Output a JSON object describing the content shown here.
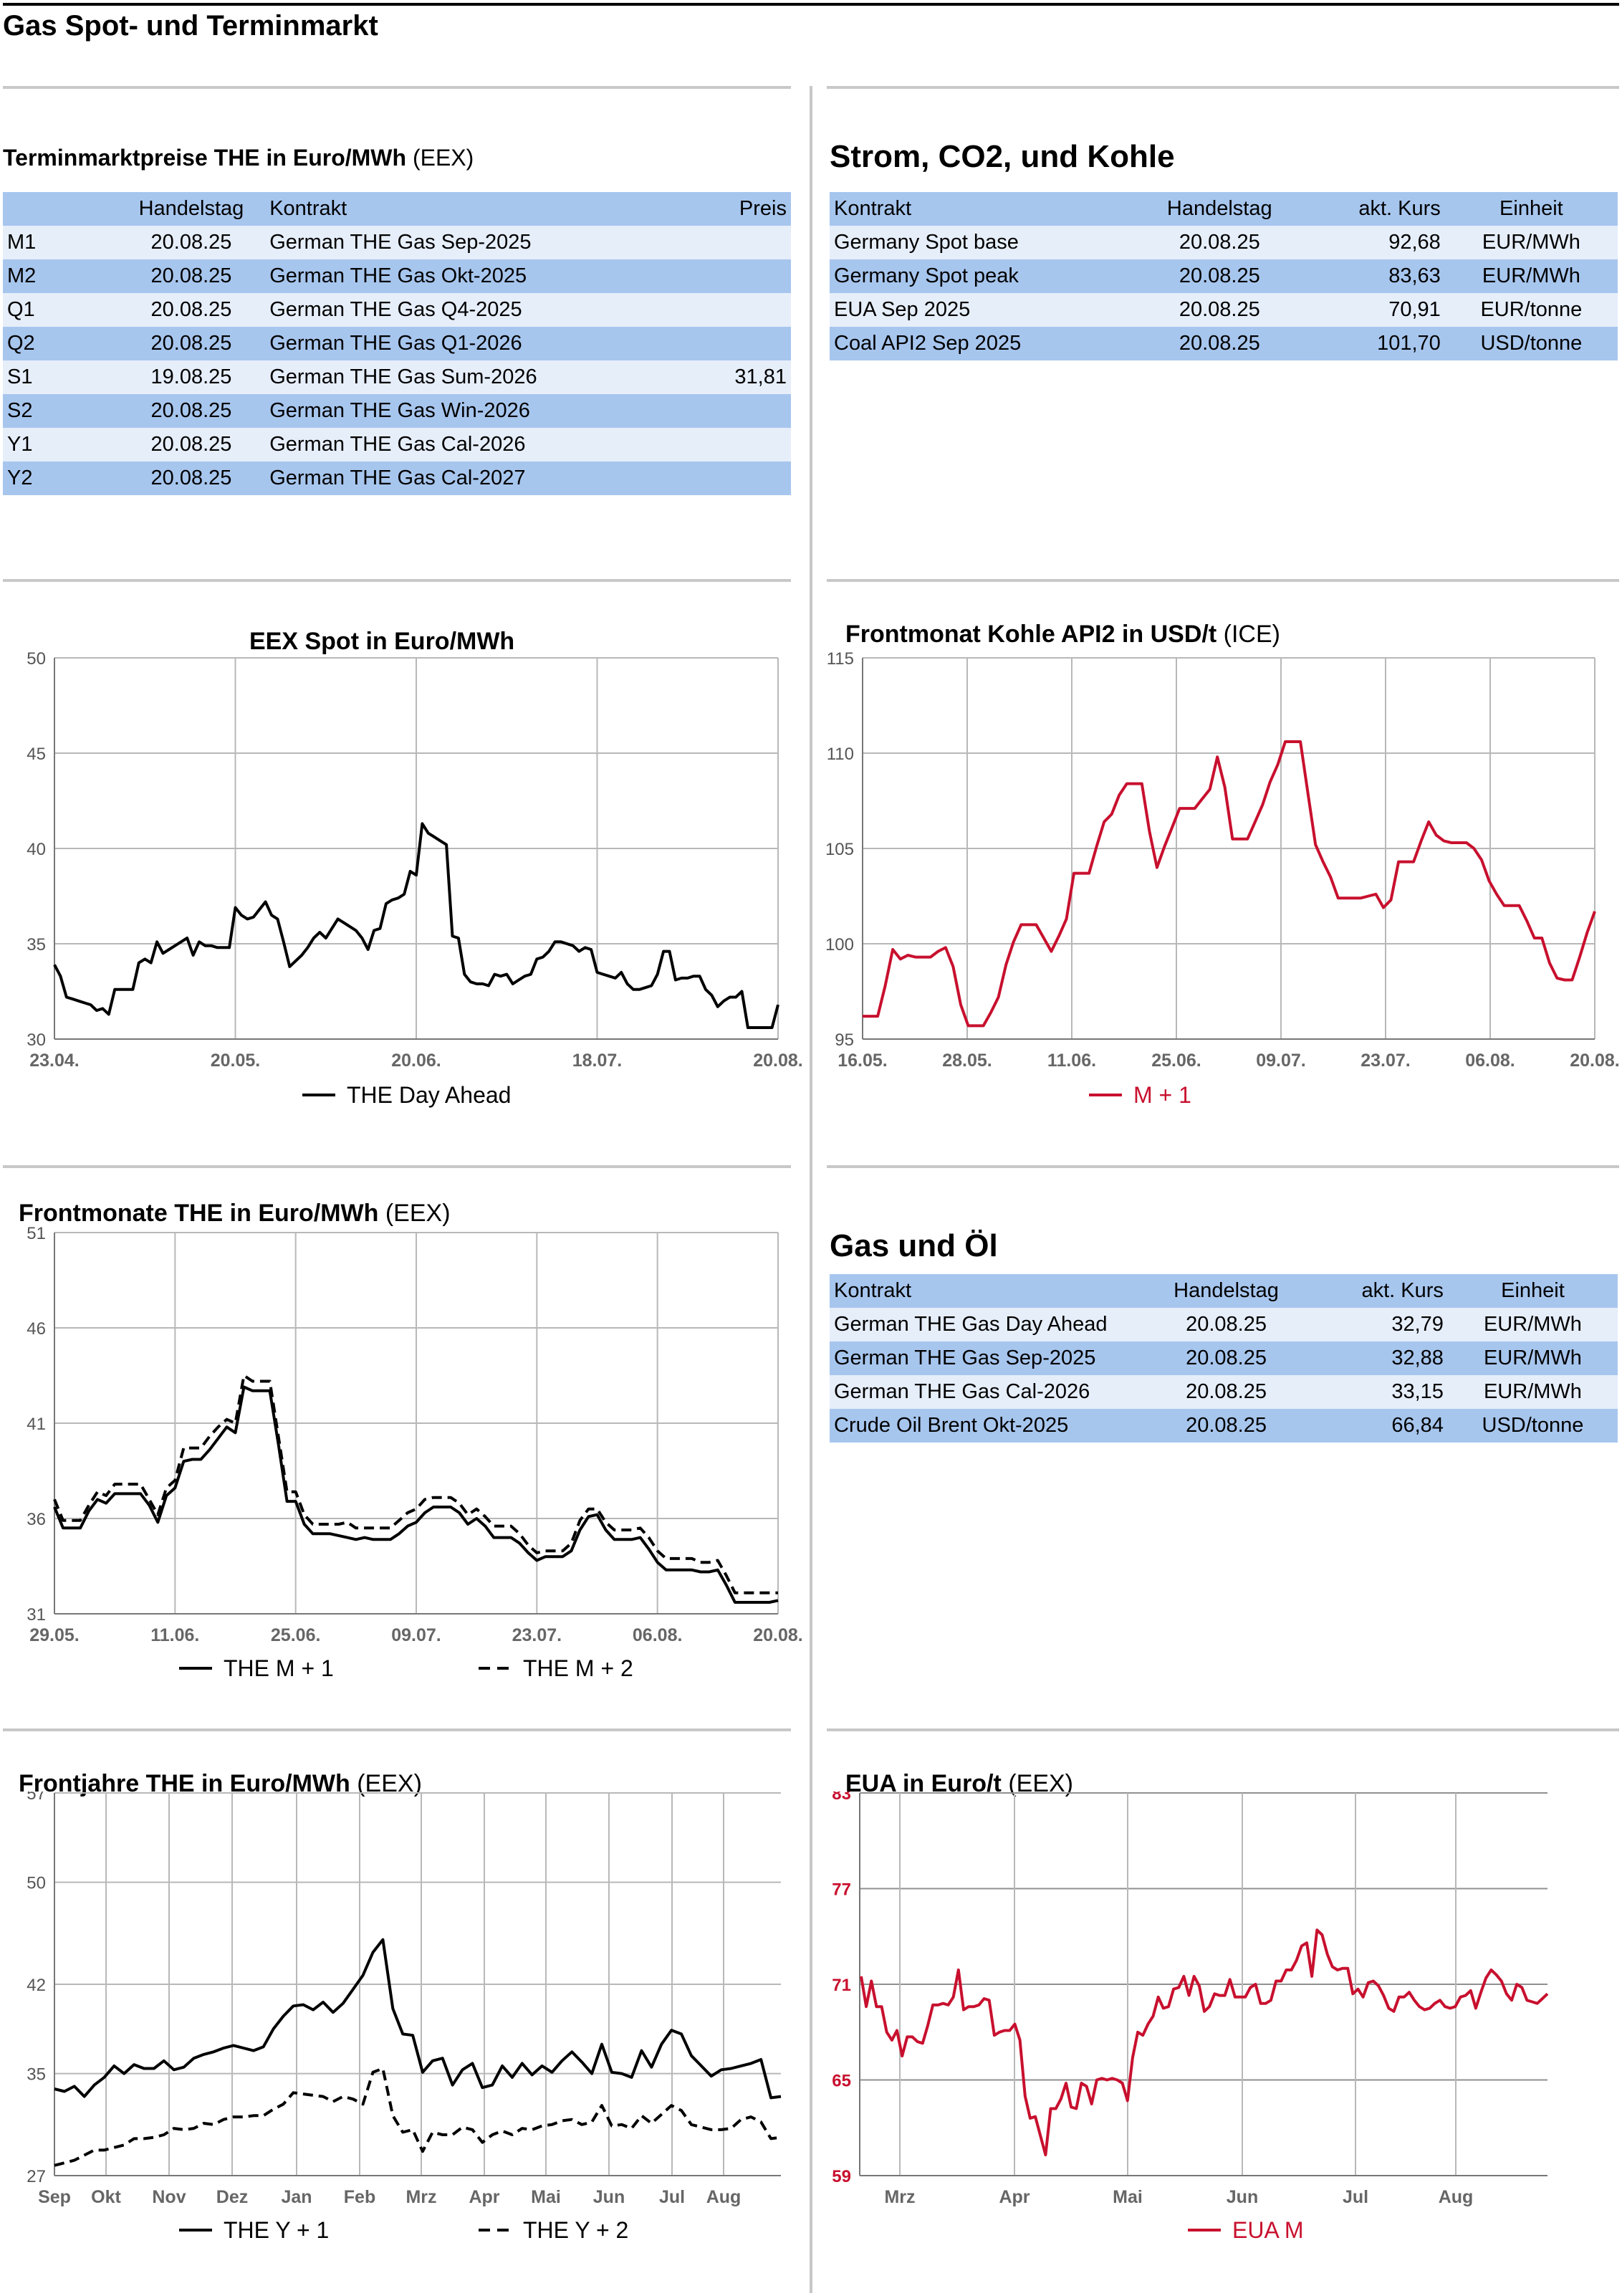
{
  "page_title": "Gas Spot- und Terminmarkt",
  "colors": {
    "header_row": "#a7c6ee",
    "alt_row": "#e6eefa",
    "red": "#c8102e",
    "black": "#000000",
    "grid": "#a0a0a0"
  },
  "terminmarkt": {
    "title": "Terminmarktpreise THE in Euro/MWh",
    "source": "(EEX)",
    "headers": [
      "",
      "Handelstag",
      "Kontrakt",
      "Preis"
    ],
    "rows": [
      [
        "M1",
        "20.08.25",
        "German THE Gas Sep-2025",
        ""
      ],
      [
        "M2",
        "20.08.25",
        "German THE Gas Okt-2025",
        ""
      ],
      [
        "Q1",
        "20.08.25",
        "German THE Gas Q4-2025",
        ""
      ],
      [
        "Q2",
        "20.08.25",
        "German THE Gas Q1-2026",
        ""
      ],
      [
        "S1",
        "19.08.25",
        "German THE Gas Sum-2026",
        "31,81"
      ],
      [
        "S2",
        "20.08.25",
        "German THE Gas Win-2026",
        ""
      ],
      [
        "Y1",
        "20.08.25",
        "German THE Gas Cal-2026",
        ""
      ],
      [
        "Y2",
        "20.08.25",
        "German THE Gas Cal-2027",
        ""
      ]
    ]
  },
  "strom": {
    "title": "Strom, CO2, und Kohle",
    "headers": [
      "Kontrakt",
      "Handelstag",
      "akt. Kurs",
      "Einheit"
    ],
    "rows": [
      [
        "Germany Spot base",
        "20.08.25",
        "92,68",
        "EUR/MWh"
      ],
      [
        "Germany Spot peak",
        "20.08.25",
        "83,63",
        "EUR/MWh"
      ],
      [
        "EUA Sep 2025",
        "20.08.25",
        "70,91",
        "EUR/tonne"
      ],
      [
        "Coal API2 Sep 2025",
        "20.08.25",
        "101,70",
        "USD/tonne"
      ]
    ]
  },
  "gasoel": {
    "title": "Gas und Öl",
    "headers": [
      "Kontrakt",
      "Handelstag",
      "akt. Kurs",
      "Einheit"
    ],
    "rows": [
      [
        "German THE Gas Day Ahead",
        "20.08.25",
        "32,79",
        "EUR/MWh"
      ],
      [
        "German THE Gas Sep-2025",
        "20.08.25",
        "32,88",
        "EUR/MWh"
      ],
      [
        "German THE Gas Cal-2026",
        "20.08.25",
        "33,15",
        "EUR/MWh"
      ],
      [
        "Crude Oil Brent Okt-2025",
        "20.08.25",
        "66,84",
        "USD/tonne"
      ]
    ]
  },
  "chart_data": [
    {
      "id": "spot",
      "type": "line",
      "title": "EEX Spot in Euro/MWh",
      "source": "",
      "xlabels": [
        "23.04.",
        "20.05.",
        "20.06.",
        "18.07.",
        "20.08."
      ],
      "ylim": [
        30,
        50
      ],
      "yticks": [
        30,
        35,
        40,
        45,
        50
      ],
      "series": [
        {
          "name": "THE Day Ahead",
          "color": "#000000",
          "dash": false,
          "values": [
            33.9,
            33.3,
            32.2,
            32.1,
            32.0,
            31.9,
            31.8,
            31.5,
            31.6,
            31.3,
            32.6,
            32.6,
            32.6,
            32.6,
            34.0,
            34.2,
            34.0,
            35.1,
            34.5,
            34.7,
            34.9,
            35.1,
            35.3,
            34.4,
            35.1,
            34.9,
            34.9,
            34.8,
            34.8,
            34.8,
            36.9,
            36.5,
            36.3,
            36.4,
            36.8,
            37.2,
            36.5,
            36.3,
            35.1,
            33.8,
            34.1,
            34.4,
            34.8,
            35.3,
            35.6,
            35.3,
            35.8,
            36.3,
            36.1,
            35.9,
            35.7,
            35.3,
            34.7,
            35.7,
            35.8,
            37.1,
            37.3,
            37.4,
            37.6,
            38.8,
            38.6,
            41.3,
            40.8,
            40.6,
            40.4,
            40.2,
            35.4,
            35.3,
            33.4,
            33.0,
            32.9,
            32.9,
            32.8,
            33.4,
            33.3,
            33.4,
            32.9,
            33.1,
            33.3,
            33.4,
            34.2,
            34.3,
            34.6,
            35.1,
            35.1,
            35.0,
            34.9,
            34.6,
            34.8,
            34.7,
            33.5,
            33.4,
            33.3,
            33.2,
            33.5,
            32.9,
            32.6,
            32.6,
            32.7,
            32.8,
            33.4,
            34.6,
            34.6,
            33.1,
            33.2,
            33.2,
            33.3,
            33.3,
            32.6,
            32.3,
            31.7,
            32.0,
            32.2,
            32.2,
            32.5,
            30.6,
            30.6,
            30.6,
            30.6,
            30.6,
            31.8
          ]
        }
      ]
    },
    {
      "id": "kohle",
      "type": "line",
      "title": "Frontmonat Kohle API2 in USD/t",
      "source": "(ICE)",
      "xlabels": [
        "16.05.",
        "28.05.",
        "11.06.",
        "25.06.",
        "09.07.",
        "23.07.",
        "06.08.",
        "20.08."
      ],
      "ylim": [
        95,
        115
      ],
      "yticks": [
        95,
        100,
        105,
        110,
        115
      ],
      "series": [
        {
          "name": "M + 1",
          "color": "#c8102e",
          "dash": false,
          "values": [
            96.2,
            96.2,
            96.2,
            97.8,
            99.7,
            99.2,
            99.4,
            99.3,
            99.3,
            99.3,
            99.6,
            99.8,
            98.8,
            96.8,
            95.7,
            95.7,
            95.7,
            96.4,
            97.2,
            98.9,
            100.1,
            101.0,
            101.0,
            101.0,
            100.3,
            99.6,
            100.4,
            101.3,
            103.7,
            103.7,
            103.7,
            105.1,
            106.4,
            106.8,
            107.8,
            108.4,
            108.4,
            108.4,
            105.9,
            104.0,
            105.1,
            106.1,
            107.1,
            107.1,
            107.1,
            107.6,
            108.1,
            109.8,
            108.2,
            105.5,
            105.5,
            105.5,
            106.4,
            107.3,
            108.5,
            109.4,
            110.6,
            110.6,
            110.6,
            107.9,
            105.2,
            104.3,
            103.5,
            102.4,
            102.4,
            102.4,
            102.4,
            102.5,
            102.6,
            101.9,
            102.3,
            104.3,
            104.3,
            104.3,
            105.4,
            106.4,
            105.7,
            105.4,
            105.3,
            105.3,
            105.3,
            105.0,
            104.4,
            103.3,
            102.6,
            102.0,
            102.0,
            102.0,
            101.2,
            100.3,
            100.3,
            99.0,
            98.2,
            98.1,
            98.1,
            99.3,
            100.6,
            101.7
          ]
        }
      ]
    },
    {
      "id": "front",
      "type": "line",
      "title": "Frontmonate THE in Euro/MWh",
      "source": "(EEX)",
      "xlabels": [
        "29.05.",
        "11.06.",
        "25.06.",
        "09.07.",
        "23.07.",
        "06.08.",
        "20.08."
      ],
      "ylim": [
        31,
        51
      ],
      "yticks": [
        31,
        36,
        41,
        46,
        51
      ],
      "series": [
        {
          "name": "THE M + 1",
          "color": "#000000",
          "dash": false,
          "values": [
            36.6,
            35.5,
            35.5,
            35.5,
            36.4,
            37.0,
            36.8,
            37.3,
            37.3,
            37.3,
            37.3,
            36.7,
            35.8,
            37.2,
            37.6,
            39.0,
            39.1,
            39.1,
            39.6,
            40.2,
            40.8,
            40.5,
            42.9,
            42.7,
            42.7,
            42.7,
            39.9,
            36.9,
            36.9,
            35.7,
            35.2,
            35.2,
            35.2,
            35.1,
            35.0,
            34.9,
            35.0,
            34.9,
            34.9,
            34.9,
            35.2,
            35.6,
            35.8,
            36.3,
            36.6,
            36.6,
            36.6,
            36.3,
            35.7,
            36.0,
            35.6,
            35.0,
            35.0,
            35.0,
            34.7,
            34.2,
            33.8,
            34.0,
            34.0,
            34.0,
            34.3,
            35.4,
            36.1,
            36.2,
            35.4,
            34.9,
            34.9,
            34.9,
            35.0,
            34.4,
            33.7,
            33.3,
            33.3,
            33.3,
            33.3,
            33.2,
            33.2,
            33.3,
            32.5,
            31.6,
            31.6,
            31.6,
            31.6,
            31.6,
            31.7
          ]
        },
        {
          "name": "THE M + 2",
          "color": "#000000",
          "dash": true,
          "values": [
            37.0,
            35.9,
            35.9,
            35.9,
            36.7,
            37.4,
            37.2,
            37.8,
            37.8,
            37.8,
            37.8,
            37.0,
            36.2,
            37.6,
            38.0,
            39.7,
            39.7,
            39.7,
            40.3,
            40.8,
            41.2,
            41.0,
            43.5,
            43.2,
            43.2,
            43.2,
            40.3,
            37.4,
            37.4,
            36.2,
            35.7,
            35.7,
            35.7,
            35.7,
            35.8,
            35.5,
            35.5,
            35.5,
            35.5,
            35.5,
            35.9,
            36.3,
            36.5,
            37.0,
            37.1,
            37.1,
            37.1,
            36.8,
            36.2,
            36.5,
            36.1,
            35.6,
            35.6,
            35.6,
            35.2,
            34.6,
            34.2,
            34.3,
            34.3,
            34.3,
            34.7,
            35.9,
            36.5,
            36.5,
            35.8,
            35.4,
            35.4,
            35.4,
            35.5,
            35.0,
            34.3,
            33.9,
            33.9,
            33.9,
            33.9,
            33.7,
            33.7,
            33.8,
            33.0,
            32.1,
            32.1,
            32.1,
            32.1,
            32.1,
            32.1
          ]
        }
      ]
    },
    {
      "id": "jahre",
      "type": "line",
      "title": "Frontjahre THE in Euro/MWh",
      "source": "(EEX)",
      "xlabels": [
        "Sep",
        "Okt",
        "Nov",
        "Dez",
        "Jan",
        "Feb",
        "Mrz",
        "Apr",
        "Mai",
        "Jun",
        "Jul",
        "Aug"
      ],
      "ylim": [
        27,
        57
      ],
      "yticks": [
        27,
        35,
        42,
        50,
        57
      ],
      "series": [
        {
          "name": "THE Y + 1",
          "color": "#000000",
          "dash": false,
          "values": [
            33.8,
            33.6,
            34.0,
            33.2,
            34.1,
            34.7,
            35.6,
            35.0,
            35.7,
            35.4,
            35.4,
            36.0,
            35.3,
            35.5,
            36.2,
            36.5,
            36.7,
            37.0,
            37.2,
            37.0,
            36.8,
            37.1,
            38.5,
            39.5,
            40.3,
            40.4,
            40.0,
            40.6,
            39.8,
            40.5,
            41.6,
            42.7,
            44.5,
            45.5,
            40.1,
            38.1,
            38.0,
            35.1,
            36.0,
            36.2,
            34.1,
            35.3,
            35.8,
            33.9,
            34.1,
            35.6,
            34.7,
            35.8,
            34.9,
            35.6,
            35.1,
            36.0,
            36.7,
            35.9,
            35.0,
            37.3,
            35.1,
            35.0,
            34.7,
            36.8,
            35.5,
            37.3,
            38.4,
            38.1,
            36.4,
            35.6,
            34.8,
            35.3,
            35.4,
            35.6,
            35.8,
            36.1,
            33.1,
            33.2
          ]
        },
        {
          "name": "THE Y + 2",
          "color": "#000000",
          "dash": true,
          "values": [
            27.8,
            28.0,
            28.2,
            28.6,
            29.0,
            29.0,
            29.2,
            29.4,
            29.9,
            29.9,
            30.0,
            30.2,
            30.7,
            30.6,
            30.7,
            31.1,
            31.0,
            31.4,
            31.6,
            31.6,
            31.7,
            31.7,
            32.2,
            32.6,
            33.5,
            33.4,
            33.3,
            33.2,
            32.8,
            33.2,
            33.0,
            32.6,
            35.1,
            35.4,
            31.7,
            30.4,
            30.6,
            28.9,
            30.4,
            30.2,
            30.2,
            30.8,
            30.6,
            29.6,
            30.2,
            30.5,
            30.2,
            30.7,
            30.6,
            30.9,
            31.0,
            31.3,
            31.4,
            31.0,
            31.2,
            32.5,
            30.9,
            31.0,
            30.7,
            31.7,
            31.1,
            31.8,
            32.5,
            32.1,
            31.0,
            30.8,
            30.6,
            30.6,
            30.7,
            31.4,
            31.6,
            31.2,
            29.9,
            30.0
          ]
        }
      ]
    },
    {
      "id": "eua",
      "type": "line",
      "title": "EUA in Euro/t",
      "source": "(EEX)",
      "xlabels": [
        "Mrz",
        "Apr",
        "Mai",
        "Jun",
        "Jul",
        "Aug"
      ],
      "ylim": [
        59,
        83
      ],
      "yticks": [
        59,
        65,
        71,
        77,
        83
      ],
      "series": [
        {
          "name": "EUA M",
          "color": "#c8102e",
          "dash": false,
          "values": [
            71.5,
            69.6,
            71.2,
            69.6,
            69.6,
            68.0,
            67.5,
            68.1,
            66.5,
            67.7,
            67.7,
            67.4,
            67.3,
            68.4,
            69.7,
            69.7,
            69.8,
            69.7,
            70.2,
            71.9,
            69.4,
            69.6,
            69.6,
            69.7,
            70.1,
            70.0,
            67.8,
            68.0,
            68.1,
            68.1,
            68.5,
            67.5,
            64.0,
            62.6,
            62.7,
            61.5,
            60.3,
            63.2,
            63.2,
            63.8,
            64.8,
            63.3,
            63.2,
            64.8,
            64.6,
            63.5,
            65.0,
            65.1,
            65.0,
            65.1,
            65.0,
            64.8,
            63.7,
            66.4,
            68.0,
            67.8,
            68.5,
            69.0,
            70.2,
            69.5,
            69.6,
            70.7,
            70.8,
            71.5,
            70.3,
            71.5,
            70.9,
            69.3,
            69.6,
            70.4,
            70.3,
            70.3,
            71.3,
            70.2,
            70.2,
            70.2,
            70.8,
            71.0,
            69.8,
            69.8,
            70.0,
            71.2,
            71.2,
            71.9,
            71.9,
            72.5,
            73.4,
            73.6,
            71.5,
            74.4,
            74.1,
            72.9,
            72.1,
            71.9,
            72.0,
            72.0,
            70.4,
            70.7,
            70.2,
            71.1,
            71.2,
            70.9,
            70.3,
            69.5,
            69.3,
            70.2,
            70.2,
            70.5,
            70.0,
            69.6,
            69.4,
            69.5,
            69.8,
            70.0,
            69.6,
            69.5,
            69.6,
            70.2,
            70.3,
            70.6,
            69.5,
            70.5,
            71.4,
            71.9,
            71.6,
            71.2,
            70.4,
            70.0,
            71.0,
            70.8,
            70.0,
            69.9,
            69.8,
            70.1,
            70.4
          ]
        }
      ]
    }
  ]
}
